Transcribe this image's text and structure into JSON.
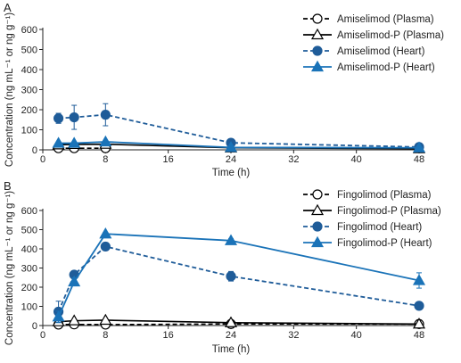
{
  "chart_data": [
    {
      "panel": "A",
      "type": "line",
      "xlabel": "Time (h)",
      "ylabel": "Concentration (ng mL⁻¹ or ng g⁻¹)",
      "xticks": [
        0,
        8,
        16,
        24,
        32,
        40,
        48
      ],
      "yticks": [
        0,
        100,
        200,
        300,
        400,
        500,
        600
      ],
      "xlim": [
        0,
        48
      ],
      "ylim": [
        0,
        600
      ],
      "grid": false,
      "legend_position": "top-right",
      "series": [
        {
          "name": "Amiselimod (Plasma)",
          "marker": "open-circle",
          "dash": "dashed",
          "color": "#000000",
          "x": [
            2,
            4,
            8
          ],
          "y": [
            8,
            8,
            8
          ],
          "err": [
            4,
            4,
            4
          ]
        },
        {
          "name": "Amiselimod-P (Plasma)",
          "marker": "open-triangle",
          "dash": "solid",
          "color": "#000000",
          "x": [
            2,
            4,
            8,
            24,
            48
          ],
          "y": [
            25,
            27,
            28,
            10,
            6
          ],
          "err": [
            3,
            3,
            3,
            2,
            2
          ]
        },
        {
          "name": "Amiselimod  (Heart)",
          "marker": "filled-circle",
          "dash": "dashed",
          "color": "#1f5c99",
          "x": [
            2,
            4,
            8,
            24,
            48
          ],
          "y": [
            157,
            162,
            175,
            35,
            14
          ],
          "err": [
            25,
            60,
            55,
            6,
            4
          ]
        },
        {
          "name": "Amiselimod-P (Heart)",
          "marker": "filled-triangle",
          "dash": "solid",
          "color": "#1a73b8",
          "x": [
            2,
            4,
            8,
            24,
            48
          ],
          "y": [
            33,
            33,
            40,
            12,
            10
          ],
          "err": [
            4,
            4,
            4,
            3,
            2
          ]
        }
      ]
    },
    {
      "panel": "B",
      "type": "line",
      "xlabel": "Time (h)",
      "ylabel": "Concentration (ng mL⁻¹ or ng g⁻¹)",
      "xticks": [
        0,
        8,
        16,
        24,
        32,
        40,
        48
      ],
      "yticks": [
        0,
        100,
        200,
        300,
        400,
        500,
        600
      ],
      "xlim": [
        0,
        48
      ],
      "ylim": [
        0,
        600
      ],
      "grid": false,
      "legend_position": "top-right",
      "series": [
        {
          "name": "Fingolimod (Plasma)",
          "marker": "open-circle",
          "dash": "dashed",
          "color": "#000000",
          "x": [
            2,
            4,
            8,
            24,
            48
          ],
          "y": [
            5,
            6,
            5,
            8,
            8
          ],
          "err": [
            3,
            3,
            3,
            3,
            3
          ]
        },
        {
          "name": "Fingolimod-P (Plasma)",
          "marker": "open-triangle",
          "dash": "solid",
          "color": "#000000",
          "x": [
            2,
            4,
            8,
            24,
            48
          ],
          "y": [
            20,
            25,
            28,
            15,
            8
          ],
          "err": [
            3,
            3,
            3,
            3,
            3
          ]
        },
        {
          "name": "Fingolimod (Heart)",
          "marker": "filled-circle",
          "dash": "dashed",
          "color": "#1f5c99",
          "x": [
            2,
            4,
            8,
            24,
            48
          ],
          "y": [
            72,
            265,
            412,
            257,
            103
          ],
          "err": [
            55,
            15,
            20,
            25,
            8
          ]
        },
        {
          "name": "Fingolimod-P (Heart)",
          "marker": "filled-triangle",
          "dash": "solid",
          "color": "#1a73b8",
          "x": [
            2,
            4,
            8,
            24,
            48
          ],
          "y": [
            45,
            228,
            478,
            443,
            235
          ],
          "err": [
            30,
            20,
            8,
            10,
            40
          ]
        }
      ]
    }
  ]
}
